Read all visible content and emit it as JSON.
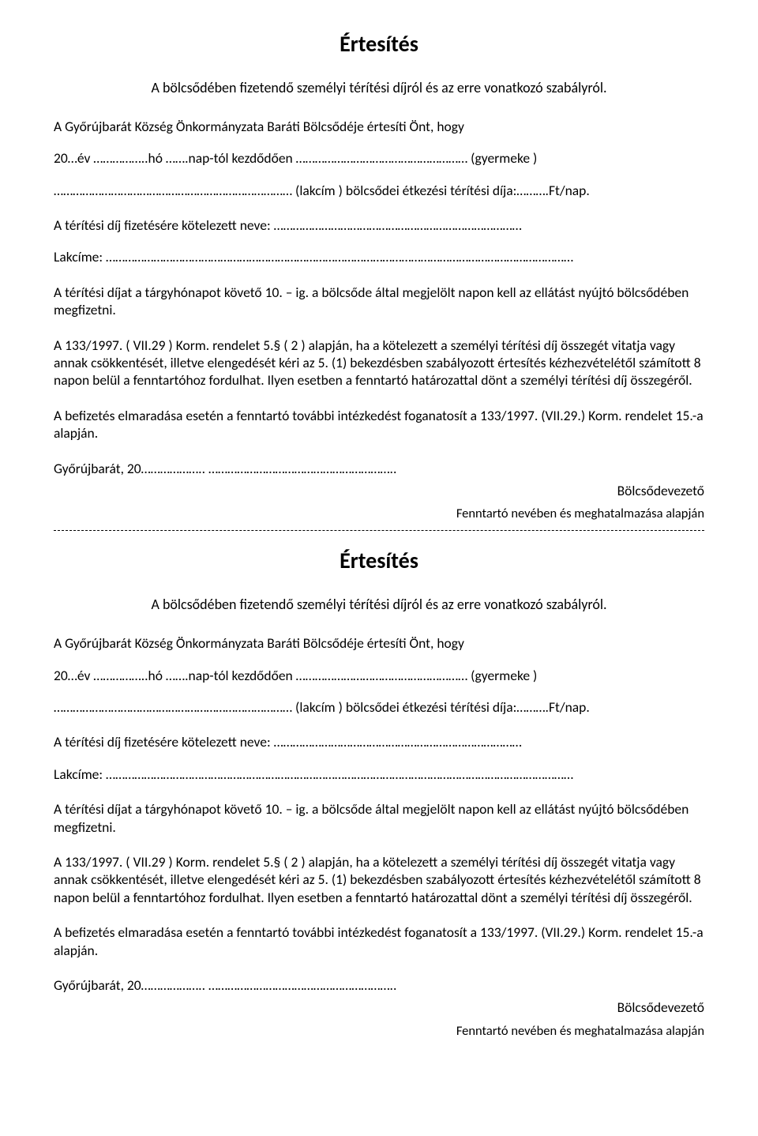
{
  "colors": {
    "background": "#ffffff",
    "text": "#000000",
    "dash": "#000000"
  },
  "typography": {
    "body_family": "Calibri",
    "body_size_pt": 12,
    "title_size_pt": 18,
    "title_weight": "bold"
  },
  "notice": {
    "title": "Értesítés",
    "subtitle": "A bölcsődében fizetendő személyi térítési díjról és az erre vonatkozó szabályról.",
    "intro": "A Győrújbarát Község Önkormányzata Baráti Bölcsődéje értesíti Önt, hogy",
    "date_line": "20…év ……………..hó …….nap-tól kezdődően ……………………………………………… (gyermeke )",
    "address_line": "………………………………………………………………… (lakcím ) bölcsődei étkezési térítési díja:……….Ft/nap.",
    "obligated_name": "A térítési díj fizetésére kötelezett neve: ……………………………………………………………………",
    "obligated_address": "Lakcíme: …………………………………………………………………………………………………………………………………",
    "deadline": "A térítési díjat a tárgyhónapot követő 10. – ig. a bölcsőde által megjelölt napon kell az ellátást nyújtó bölcsődében megfizetni.",
    "legal": "A 133/1997. ( VII.29 ) Korm. rendelet 5.§ ( 2 ) alapján, ha a kötelezett a személyi térítési díj összegét vitatja vagy annak csökkentését, illetve elengedését kéri az 5. (1) bekezdésben szabályozott értesítés kézhezvételétől számított 8 napon belül a fenntartóhoz fordulhat. Ilyen esetben a fenntartó határozattal dönt a személyi térítési díj összegéről.",
    "default": "A befizetés elmaradása esetén a fenntartó további intézkedést foganatosít a 133/1997. (VII.29.) Korm. rendelet 15.-a alapján.",
    "place_date_top": "Győrújbarát, 20………………..                                                                                          …………………………………………………..",
    "place_date_bottom": "Győrújbarát, 20………………..                                                                       …………………………………………………..",
    "sign_title": "Bölcsődevezető",
    "sign_sub_top": "Fenntartó nevében és  meghatalmazása alapján",
    "sign_sub_bottom": "Fenntartó nevében és meghatalmazása alapján"
  }
}
